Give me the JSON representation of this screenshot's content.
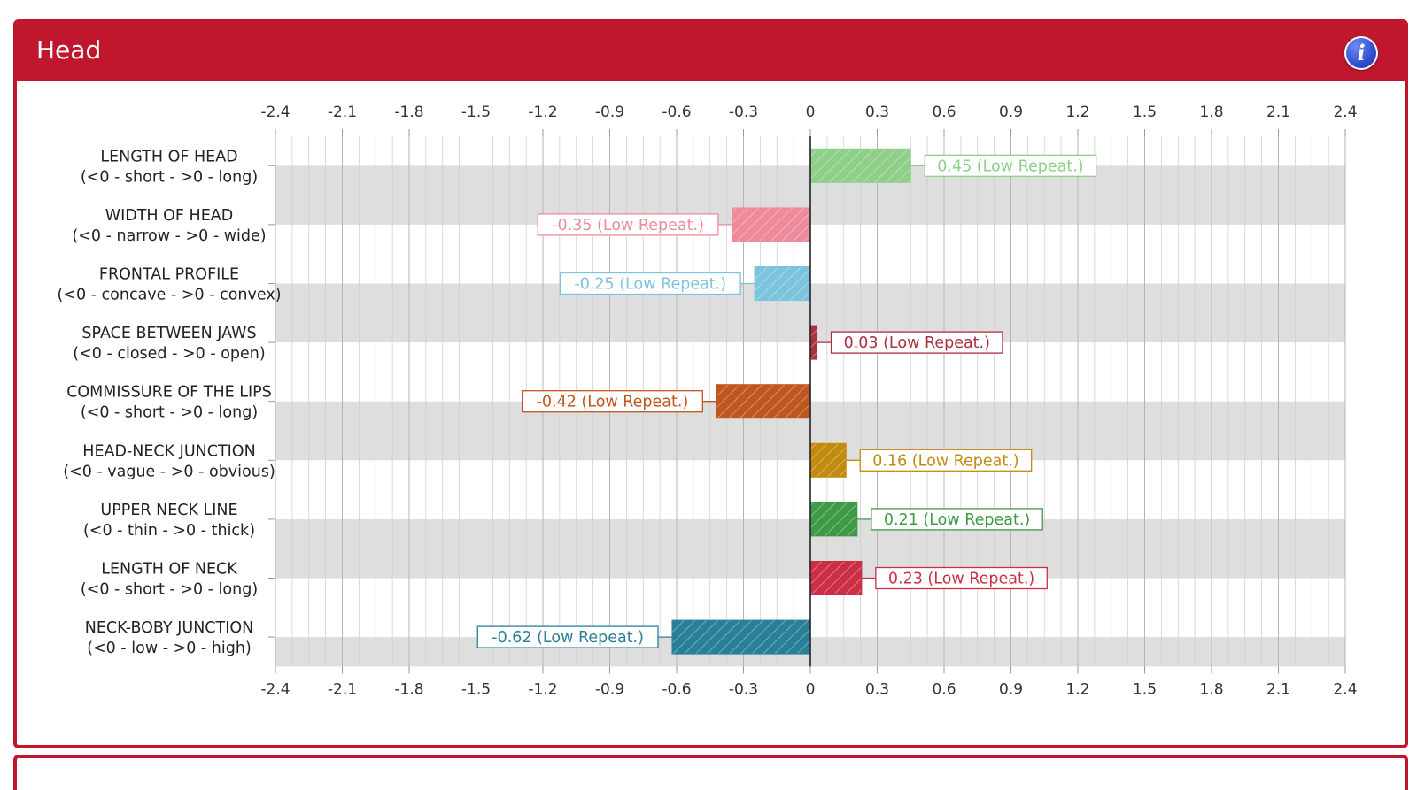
{
  "panel": {
    "title": "Head",
    "info_icon": "info-icon",
    "accent": "#c0172e"
  },
  "chart_data": {
    "type": "bar",
    "orientation": "horizontal",
    "title": "Head",
    "xlim": [
      -2.4,
      2.4
    ],
    "x_ticks": [
      "-2.4",
      "-2.1",
      "-1.8",
      "-1.5",
      "-1.2",
      "-0.9",
      "-0.6",
      "-0.3",
      "0",
      "0.3",
      "0.6",
      "0.9",
      "1.2",
      "1.5",
      "1.8",
      "2.1",
      "2.4"
    ],
    "grid": true,
    "categories": [
      {
        "name": "LENGTH OF HEAD",
        "range": "(<0 - short - >0 - long)",
        "value": 0.45,
        "label": "0.45 (Low Repeat.)",
        "color": "#8fcf8a"
      },
      {
        "name": "WIDTH OF HEAD",
        "range": "(<0 - narrow - >0 - wide)",
        "value": -0.35,
        "label": "-0.35 (Low Repeat.)",
        "color": "#ee8b9a"
      },
      {
        "name": "FRONTAL PROFILE",
        "range": "(<0 - concave - >0 - convex)",
        "value": -0.25,
        "label": "-0.25 (Low Repeat.)",
        "color": "#7cc4dd"
      },
      {
        "name": "SPACE BETWEEN JAWS",
        "range": "(<0 - closed - >0 - open)",
        "value": 0.03,
        "label": "0.03 (Low Repeat.)",
        "color": "#a8323e"
      },
      {
        "name": "COMMISSURE OF THE LIPS",
        "range": "(<0 - short - >0 - long)",
        "value": -0.42,
        "label": "-0.42 (Low Repeat.)",
        "color": "#c0561f"
      },
      {
        "name": "HEAD-NECK JUNCTION",
        "range": "(<0 - vague - >0 - obvious)",
        "value": 0.16,
        "label": "0.16 (Low Repeat.)",
        "color": "#c28b10"
      },
      {
        "name": "UPPER NECK LINE",
        "range": "(<0 - thin - >0 - thick)",
        "value": 0.21,
        "label": "0.21 (Low Repeat.)",
        "color": "#3f9a47"
      },
      {
        "name": "LENGTH OF NECK",
        "range": "(<0 - short - >0 - long)",
        "value": 0.23,
        "label": "0.23 (Low Repeat.)",
        "color": "#cc2f45"
      },
      {
        "name": "NECK-BOBY JUNCTION",
        "range": "(<0 - low - >0 - high)",
        "value": -0.62,
        "label": "-0.62 (Low Repeat.)",
        "color": "#2a7f98"
      }
    ]
  }
}
